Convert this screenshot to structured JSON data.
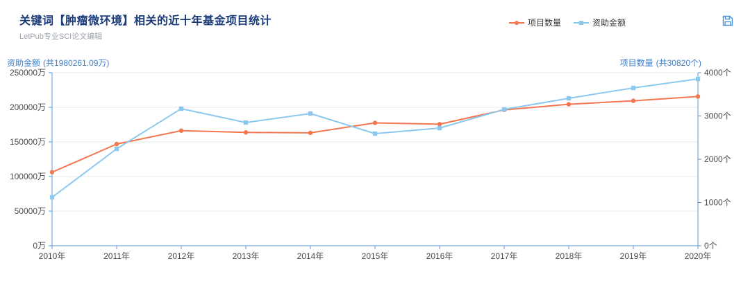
{
  "header": {
    "title": "关键词【肿瘤微环境】相关的近十年基金项目统计",
    "subtitle": "LetPub专业SCI论文编辑",
    "legend": [
      {
        "label": "项目数量",
        "color": "#f3764e",
        "marker": "circle"
      },
      {
        "label": "资助金额",
        "color": "#8cc8ee",
        "marker": "square"
      }
    ],
    "save_icon": "save-icon"
  },
  "axes": {
    "left_title": "资助金额",
    "left_total": "(共1980261.09万)",
    "right_title": "项目数量",
    "right_total": "(共30820个)"
  },
  "chart_data": {
    "type": "line",
    "title": "关键词【肿瘤微环境】相关的近十年基金项目统计",
    "x": [
      "2010年",
      "2011年",
      "2012年",
      "2013年",
      "2014年",
      "2015年",
      "2016年",
      "2017年",
      "2018年",
      "2019年",
      "2020年"
    ],
    "series": [
      {
        "name": "项目数量",
        "axis": "right",
        "color": "#f3764e",
        "marker": "circle",
        "values": [
          1700,
          2350,
          2660,
          2620,
          2610,
          2840,
          2810,
          3140,
          3270,
          3350,
          3450
        ]
      },
      {
        "name": "资助金额",
        "axis": "left",
        "color": "#8cc8ee",
        "marker": "square",
        "values": [
          70000,
          140000,
          198000,
          178000,
          191000,
          162000,
          170000,
          197000,
          213000,
          228000,
          241000
        ]
      }
    ],
    "left_axis": {
      "min": 0,
      "max": 250000,
      "unit": "万",
      "tick_values": [
        250000,
        200000,
        150000,
        100000,
        50000,
        0
      ],
      "tick_labels": [
        "250000万",
        "200000万",
        "150000万",
        "100000万",
        "50000万",
        "0万"
      ]
    },
    "right_axis": {
      "min": 0,
      "max": 4000,
      "unit": "个",
      "tick_values": [
        4000,
        3000,
        2000,
        1000,
        0
      ],
      "tick_labels": [
        "4000个",
        "3000个",
        "2000个",
        "1000个",
        "0个"
      ]
    },
    "grid": true,
    "legend_position": "top-right"
  },
  "colors": {
    "title": "#1a3a78",
    "subtitle": "#9ba1a9",
    "axis_title": "#3f7ec5",
    "axis_line": "#5b9bd5",
    "grid_line": "#e9e9e9",
    "tick_text": "#4a4a4a",
    "legend_text": "#333333",
    "save_icon": "#4a90d2"
  }
}
